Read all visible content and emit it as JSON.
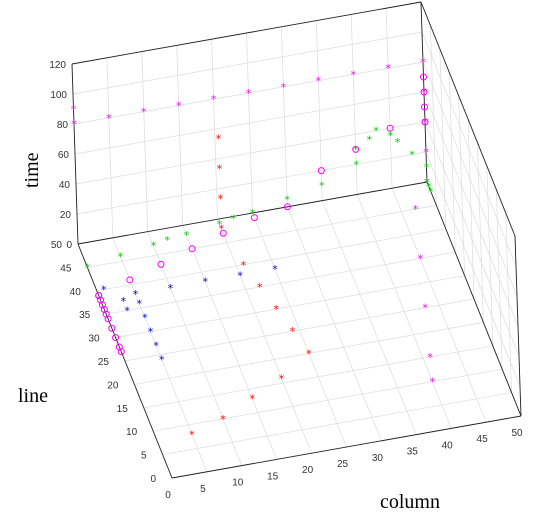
{
  "chart_data": {
    "type": "scatter3d",
    "xlabel": "column",
    "ylabel": "line",
    "zlabel": "time",
    "xlim": [
      0,
      50
    ],
    "ylim": [
      0,
      50
    ],
    "zlim": [
      0,
      120
    ],
    "x_ticks": [
      "0",
      "5",
      "10",
      "15",
      "20",
      "25",
      "30",
      "35",
      "40",
      "45",
      "50"
    ],
    "y_ticks": [
      "0",
      "5",
      "10",
      "15",
      "20",
      "25",
      "30",
      "35",
      "40",
      "45",
      "50"
    ],
    "z_ticks": [
      "0",
      "20",
      "40",
      "60",
      "80",
      "100",
      "120"
    ],
    "grid": true,
    "series": [
      {
        "color": "#ff00ff",
        "marker": "star",
        "points": [
          [
            0,
            50,
            90
          ],
          [
            0,
            50,
            80
          ],
          [
            5,
            50,
            80
          ],
          [
            10,
            50,
            80
          ],
          [
            15,
            50,
            80
          ],
          [
            20,
            50,
            80
          ],
          [
            25,
            50,
            80
          ],
          [
            30,
            50,
            80
          ],
          [
            35,
            50,
            80
          ],
          [
            40,
            50,
            80
          ],
          [
            45,
            50,
            80
          ],
          [
            50,
            50,
            80
          ],
          [
            50,
            50,
            60
          ],
          [
            50,
            50,
            40
          ],
          [
            50,
            50,
            20
          ],
          [
            50,
            50,
            0
          ],
          [
            47,
            45,
            0
          ],
          [
            45,
            35,
            0
          ],
          [
            43,
            25,
            0
          ],
          [
            41,
            15,
            0
          ],
          [
            40,
            10,
            0
          ]
        ]
      },
      {
        "color": "#ff00ff",
        "marker": "circle",
        "points": [
          [
            0,
            35,
            0
          ],
          [
            0,
            36,
            0
          ],
          [
            0,
            37,
            0
          ],
          [
            0,
            38,
            0
          ],
          [
            0,
            39,
            0
          ],
          [
            0,
            34,
            0
          ],
          [
            0,
            32,
            0
          ],
          [
            0,
            30,
            0
          ],
          [
            0,
            28,
            0
          ],
          [
            0,
            27,
            0
          ],
          [
            0,
            39,
            0
          ],
          [
            5,
            41,
            0
          ],
          [
            10,
            43,
            0
          ],
          [
            15,
            45,
            0
          ],
          [
            20,
            47,
            0
          ],
          [
            25,
            49,
            0
          ],
          [
            30,
            50,
            0
          ],
          [
            35,
            50,
            20
          ],
          [
            40,
            50,
            30
          ],
          [
            45,
            50,
            40
          ],
          [
            50,
            50,
            40
          ],
          [
            50,
            50,
            50
          ],
          [
            50,
            50,
            60
          ],
          [
            50,
            50,
            70
          ]
        ]
      },
      {
        "color": "#00cc00",
        "marker": "star",
        "points": [
          [
            0,
            45,
            0
          ],
          [
            5,
            46,
            0
          ],
          [
            10,
            47,
            0
          ],
          [
            12,
            47,
            2
          ],
          [
            15,
            48,
            0
          ],
          [
            20,
            49,
            0
          ],
          [
            22,
            49,
            2
          ],
          [
            25,
            50,
            0
          ],
          [
            30,
            50,
            5
          ],
          [
            35,
            50,
            10
          ],
          [
            40,
            50,
            20
          ],
          [
            40,
            50,
            30
          ],
          [
            42,
            50,
            35
          ],
          [
            43,
            50,
            40
          ],
          [
            45,
            50,
            35
          ],
          [
            46,
            50,
            30
          ],
          [
            48,
            50,
            20
          ],
          [
            50,
            50,
            10
          ],
          [
            50,
            50,
            0
          ],
          [
            50,
            49,
            0
          ],
          [
            50,
            48,
            0
          ]
        ]
      },
      {
        "color": "#0000cc",
        "marker": "star",
        "points": [
          [
            5,
            38,
            0
          ],
          [
            10,
            38,
            0
          ],
          [
            15,
            38,
            0
          ],
          [
            20,
            38,
            0
          ],
          [
            25,
            38,
            0
          ],
          [
            5,
            36,
            0
          ],
          [
            5,
            33,
            0
          ],
          [
            5,
            30,
            0
          ],
          [
            5,
            27,
            0
          ],
          [
            5,
            24,
            0
          ],
          [
            3,
            37,
            0
          ],
          [
            3,
            35,
            0
          ],
          [
            1,
            40,
            0
          ]
        ]
      },
      {
        "color": "#ff0000",
        "marker": "star",
        "points": [
          [
            20,
            48,
            0
          ],
          [
            20,
            48,
            20
          ],
          [
            20,
            48,
            40
          ],
          [
            20,
            48,
            60
          ],
          [
            21,
            40,
            0
          ],
          [
            22,
            35,
            0
          ],
          [
            23,
            30,
            0
          ],
          [
            24,
            25,
            0
          ],
          [
            25,
            20,
            0
          ],
          [
            20,
            16,
            0
          ],
          [
            15,
            13,
            0
          ],
          [
            10,
            10,
            0
          ],
          [
            5,
            8,
            0
          ]
        ]
      }
    ]
  }
}
